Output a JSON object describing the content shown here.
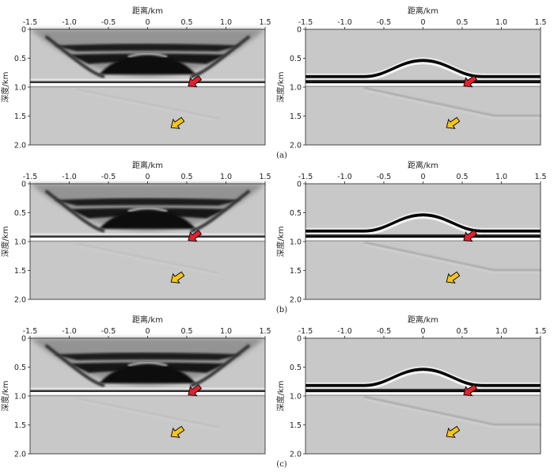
{
  "xlabel": "距离/km",
  "ylabel": "深度/km",
  "x_ticks": [
    "-1.5",
    "-1.0",
    "-0.5",
    "0",
    "0.5",
    "1.0",
    "1.5"
  ],
  "y_ticks": [
    "0",
    "0.5",
    "1.0",
    "1.5",
    "2.0"
  ],
  "rows": [
    {
      "caption": "(a)"
    },
    {
      "caption": "(b)"
    },
    {
      "caption": "(c)"
    }
  ],
  "colors": {
    "arrow_red": "#e8202a",
    "arrow_yellow": "#f5c518",
    "background": "#c8c8c8"
  }
}
